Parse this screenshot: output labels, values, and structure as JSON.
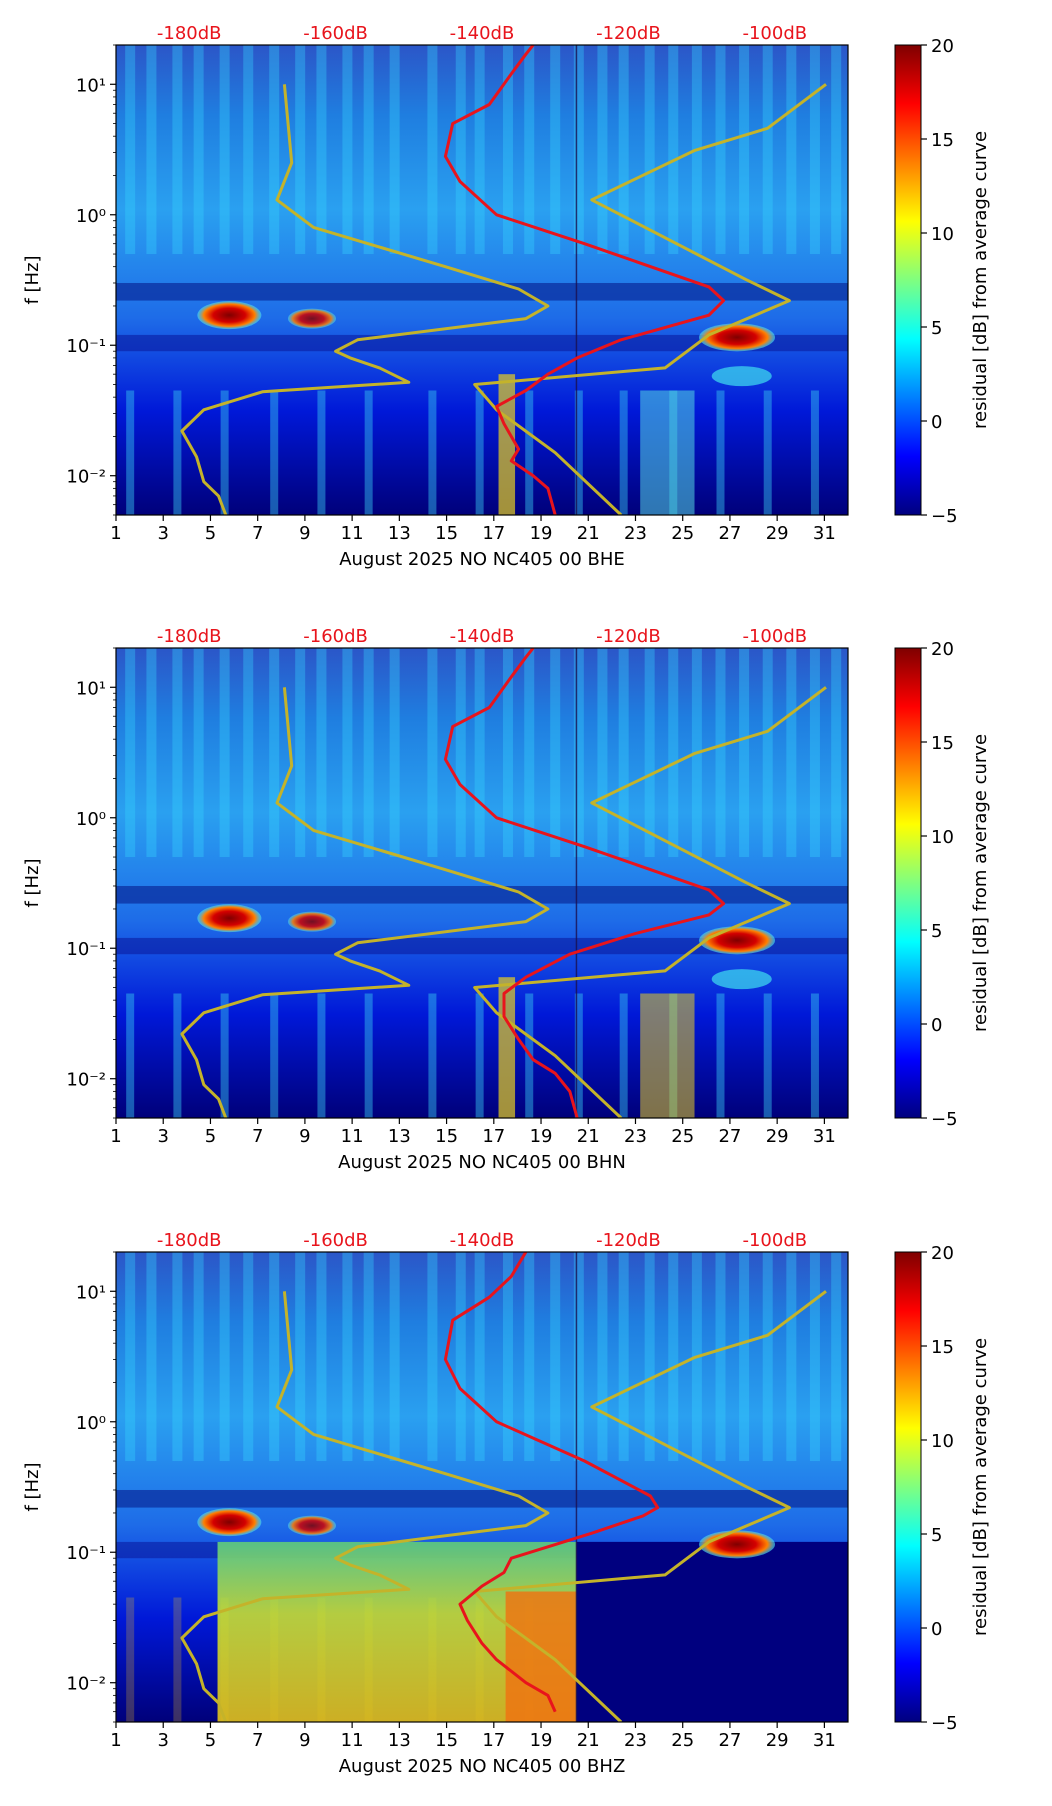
{
  "figure": {
    "colorbar_label": "residual [dB] from average curve",
    "colorbar_ticks": [
      "20",
      "15",
      "10",
      "5",
      "0",
      "−5"
    ]
  },
  "chart_data": [
    {
      "type": "heatmap",
      "title": "",
      "xlabel": "August 2025 NO NC405 00 BHE",
      "ylabel": "f [Hz]",
      "x_ticks": [
        "1",
        "3",
        "5",
        "7",
        "9",
        "11",
        "13",
        "15",
        "17",
        "19",
        "21",
        "23",
        "25",
        "27",
        "29",
        "31"
      ],
      "xlim": [
        1,
        32
      ],
      "y_ticks": [
        "10⁻²",
        "10⁻¹",
        "10⁰",
        "10¹"
      ],
      "ylim_hz": [
        0.005,
        20
      ],
      "top_ticks": [
        "-180dB",
        "-160dB",
        "-140dB",
        "-120dB",
        "-100dB"
      ],
      "top_range_db": [
        -190,
        -90
      ],
      "colorbar_range": [
        -5,
        20
      ],
      "noise_model_curve": {
        "name": "noise model",
        "color": "#c4b32a",
        "points": [
          [
            -175,
            0.005
          ],
          [
            -176,
            0.007
          ],
          [
            -178,
            0.009
          ],
          [
            -179,
            0.014
          ],
          [
            -181,
            0.022
          ],
          [
            -178,
            0.032
          ],
          [
            -170,
            0.044
          ],
          [
            -150,
            0.052
          ],
          [
            -154,
            0.067
          ],
          [
            -158,
            0.08
          ],
          [
            -160,
            0.09
          ],
          [
            -157,
            0.11
          ],
          [
            -134,
            0.16
          ],
          [
            -131,
            0.2
          ],
          [
            -135,
            0.27
          ],
          [
            -145,
            0.4
          ],
          [
            -163,
            0.8
          ],
          [
            -168,
            1.3
          ],
          [
            -166,
            2.5
          ],
          [
            -167,
            10
          ]
        ]
      },
      "noise_model_curve_2": {
        "name": "noise model",
        "color": "#c4b32a",
        "points": [
          [
            -121,
            0.005
          ],
          [
            -130,
            0.015
          ],
          [
            -138,
            0.032
          ],
          [
            -141,
            0.05
          ],
          [
            -115,
            0.067
          ],
          [
            -109,
            0.12
          ],
          [
            -98,
            0.22
          ],
          [
            -104,
            0.32
          ],
          [
            -125,
            1.3
          ],
          [
            -111,
            3.1
          ],
          [
            -101,
            4.6
          ],
          [
            -93,
            10
          ]
        ]
      },
      "average_curve": {
        "name": "average curve",
        "color": "#e8141c",
        "points": [
          [
            -130,
            0.005
          ],
          [
            -131,
            0.008
          ],
          [
            -133,
            0.01
          ],
          [
            -136,
            0.013
          ],
          [
            -135,
            0.016
          ],
          [
            -137,
            0.025
          ],
          [
            -138,
            0.034
          ],
          [
            -134,
            0.045
          ],
          [
            -131,
            0.06
          ],
          [
            -127,
            0.08
          ],
          [
            -121,
            0.11
          ],
          [
            -109,
            0.17
          ],
          [
            -107,
            0.22
          ],
          [
            -109,
            0.28
          ],
          [
            -126,
            0.6
          ],
          [
            -138,
            1.0
          ],
          [
            -143,
            1.8
          ],
          [
            -145,
            2.8
          ],
          [
            -144,
            5
          ],
          [
            -139,
            7
          ],
          [
            -136,
            12
          ],
          [
            -134,
            17
          ],
          [
            -133,
            20
          ]
        ]
      }
    },
    {
      "type": "heatmap",
      "title": "",
      "xlabel": "August 2025 NO NC405 00 BHN",
      "ylabel": "f [Hz]",
      "x_ticks": [
        "1",
        "3",
        "5",
        "7",
        "9",
        "11",
        "13",
        "15",
        "17",
        "19",
        "21",
        "23",
        "25",
        "27",
        "29",
        "31"
      ],
      "xlim": [
        1,
        32
      ],
      "y_ticks": [
        "10⁻²",
        "10⁻¹",
        "10⁰",
        "10¹"
      ],
      "ylim_hz": [
        0.005,
        20
      ],
      "top_ticks": [
        "-180dB",
        "-160dB",
        "-140dB",
        "-120dB",
        "-100dB"
      ],
      "top_range_db": [
        -190,
        -90
      ],
      "colorbar_range": [
        -5,
        20
      ],
      "noise_model_curve": {
        "name": "noise model",
        "color": "#c4b32a",
        "points": [
          [
            -175,
            0.005
          ],
          [
            -176,
            0.007
          ],
          [
            -178,
            0.009
          ],
          [
            -179,
            0.014
          ],
          [
            -181,
            0.022
          ],
          [
            -178,
            0.032
          ],
          [
            -170,
            0.044
          ],
          [
            -150,
            0.052
          ],
          [
            -154,
            0.067
          ],
          [
            -158,
            0.08
          ],
          [
            -160,
            0.09
          ],
          [
            -157,
            0.11
          ],
          [
            -134,
            0.16
          ],
          [
            -131,
            0.2
          ],
          [
            -135,
            0.27
          ],
          [
            -145,
            0.4
          ],
          [
            -163,
            0.8
          ],
          [
            -168,
            1.3
          ],
          [
            -166,
            2.5
          ],
          [
            -167,
            10
          ]
        ]
      },
      "noise_model_curve_2": {
        "name": "noise model",
        "color": "#c4b32a",
        "points": [
          [
            -121,
            0.005
          ],
          [
            -130,
            0.015
          ],
          [
            -138,
            0.032
          ],
          [
            -141,
            0.05
          ],
          [
            -115,
            0.067
          ],
          [
            -109,
            0.12
          ],
          [
            -98,
            0.22
          ],
          [
            -104,
            0.32
          ],
          [
            -125,
            1.3
          ],
          [
            -111,
            3.1
          ],
          [
            -101,
            4.6
          ],
          [
            -93,
            10
          ]
        ]
      },
      "average_curve": {
        "name": "average curve",
        "color": "#e8141c",
        "points": [
          [
            -127,
            0.005
          ],
          [
            -128,
            0.008
          ],
          [
            -130,
            0.011
          ],
          [
            -133,
            0.014
          ],
          [
            -135,
            0.02
          ],
          [
            -137,
            0.03
          ],
          [
            -137,
            0.045
          ],
          [
            -134,
            0.06
          ],
          [
            -128,
            0.09
          ],
          [
            -119,
            0.13
          ],
          [
            -109,
            0.18
          ],
          [
            -107,
            0.22
          ],
          [
            -109,
            0.28
          ],
          [
            -126,
            0.6
          ],
          [
            -138,
            1.0
          ],
          [
            -143,
            1.8
          ],
          [
            -145,
            2.8
          ],
          [
            -144,
            5
          ],
          [
            -139,
            7
          ],
          [
            -136,
            12
          ],
          [
            -134,
            17
          ],
          [
            -133,
            20
          ]
        ]
      }
    },
    {
      "type": "heatmap",
      "title": "",
      "xlabel": "August 2025 NO NC405 00 BHZ",
      "ylabel": "f [Hz]",
      "x_ticks": [
        "1",
        "3",
        "5",
        "7",
        "9",
        "11",
        "13",
        "15",
        "17",
        "19",
        "21",
        "23",
        "25",
        "27",
        "29",
        "31"
      ],
      "xlim": [
        1,
        32
      ],
      "y_ticks": [
        "10⁻²",
        "10⁻¹",
        "10⁰",
        "10¹"
      ],
      "ylim_hz": [
        0.005,
        20
      ],
      "top_ticks": [
        "-180dB",
        "-160dB",
        "-140dB",
        "-120dB",
        "-100dB"
      ],
      "top_range_db": [
        -190,
        -90
      ],
      "colorbar_range": [
        -5,
        20
      ],
      "noise_model_curve": {
        "name": "noise model",
        "color": "#c4b32a",
        "points": [
          [
            -175,
            0.005
          ],
          [
            -176,
            0.007
          ],
          [
            -178,
            0.009
          ],
          [
            -179,
            0.014
          ],
          [
            -181,
            0.022
          ],
          [
            -178,
            0.032
          ],
          [
            -170,
            0.044
          ],
          [
            -150,
            0.052
          ],
          [
            -154,
            0.067
          ],
          [
            -158,
            0.08
          ],
          [
            -160,
            0.09
          ],
          [
            -157,
            0.11
          ],
          [
            -134,
            0.16
          ],
          [
            -131,
            0.2
          ],
          [
            -135,
            0.27
          ],
          [
            -145,
            0.4
          ],
          [
            -163,
            0.8
          ],
          [
            -168,
            1.3
          ],
          [
            -166,
            2.5
          ],
          [
            -167,
            10
          ]
        ]
      },
      "noise_model_curve_2": {
        "name": "noise model",
        "color": "#c4b32a",
        "points": [
          [
            -121,
            0.005
          ],
          [
            -130,
            0.015
          ],
          [
            -138,
            0.032
          ],
          [
            -141,
            0.05
          ],
          [
            -115,
            0.067
          ],
          [
            -109,
            0.12
          ],
          [
            -98,
            0.22
          ],
          [
            -104,
            0.32
          ],
          [
            -125,
            1.3
          ],
          [
            -111,
            3.1
          ],
          [
            -101,
            4.6
          ],
          [
            -93,
            10
          ]
        ]
      },
      "average_curve": {
        "name": "average curve",
        "color": "#e8141c",
        "points": [
          [
            -130,
            0.006
          ],
          [
            -131,
            0.008
          ],
          [
            -134,
            0.01
          ],
          [
            -138,
            0.015
          ],
          [
            -140,
            0.02
          ],
          [
            -142,
            0.03
          ],
          [
            -143,
            0.04
          ],
          [
            -140,
            0.055
          ],
          [
            -137,
            0.07
          ],
          [
            -136,
            0.09
          ],
          [
            -125,
            0.14
          ],
          [
            -118,
            0.19
          ],
          [
            -116,
            0.22
          ],
          [
            -117,
            0.27
          ],
          [
            -126,
            0.5
          ],
          [
            -138,
            1.0
          ],
          [
            -143,
            1.8
          ],
          [
            -145,
            3
          ],
          [
            -144,
            6
          ],
          [
            -139,
            9
          ],
          [
            -136,
            13
          ],
          [
            -134,
            20
          ]
        ]
      }
    }
  ]
}
